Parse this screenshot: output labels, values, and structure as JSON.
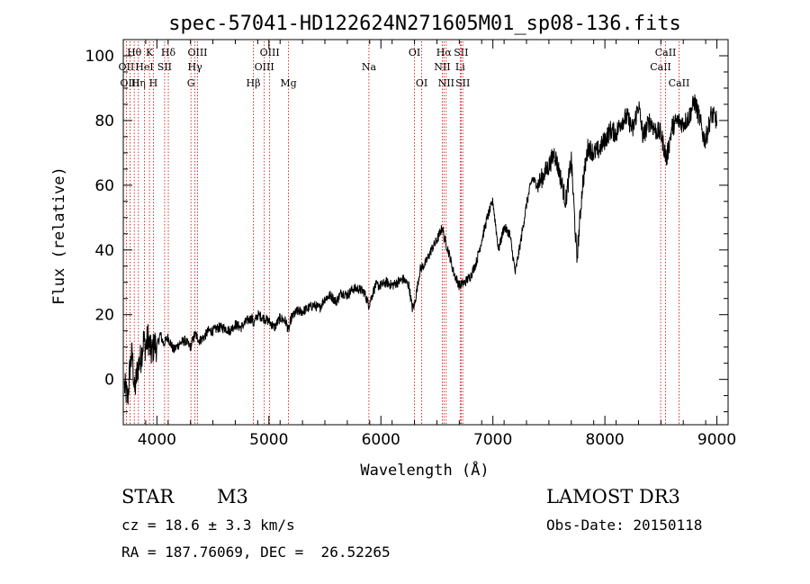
{
  "chart_data": {
    "type": "line",
    "title": "spec-57041-HD122624N271605M01_sp08-136.fits",
    "xlabel": "Wavelength (Å)",
    "ylabel": "Flux (relative)",
    "xlim": [
      3700,
      9100
    ],
    "ylim": [
      -14,
      105
    ],
    "xticks": [
      4000,
      5000,
      6000,
      7000,
      8000,
      9000
    ],
    "yticks": [
      0,
      20,
      40,
      60,
      80,
      100
    ],
    "spectrum_anchor_points": {
      "x": [
        3710,
        3740,
        3760,
        3780,
        3800,
        3830,
        3860,
        3880,
        3900,
        3920,
        3950,
        3980,
        4000,
        4030,
        4060,
        4100,
        4150,
        4200,
        4250,
        4300,
        4340,
        4380,
        4420,
        4460,
        4500,
        4550,
        4600,
        4650,
        4700,
        4750,
        4800,
        4850,
        4861,
        4900,
        4950,
        5000,
        5050,
        5100,
        5150,
        5175,
        5200,
        5250,
        5300,
        5350,
        5400,
        5450,
        5500,
        5550,
        5600,
        5650,
        5700,
        5750,
        5800,
        5850,
        5893,
        5950,
        6000,
        6050,
        6100,
        6150,
        6200,
        6250,
        6280,
        6300,
        6350,
        6400,
        6450,
        6500,
        6550,
        6563,
        6600,
        6650,
        6700,
        6750,
        6800,
        6850,
        6900,
        6950,
        7000,
        7050,
        7100,
        7150,
        7200,
        7250,
        7300,
        7350,
        7400,
        7450,
        7500,
        7550,
        7600,
        7650,
        7700,
        7750,
        7800,
        7850,
        7900,
        7950,
        8000,
        8050,
        8100,
        8150,
        8200,
        8250,
        8300,
        8340,
        8400,
        8450,
        8500,
        8550,
        8600,
        8650,
        8700,
        8750,
        8800,
        8850,
        8880,
        8900,
        8950,
        9000
      ],
      "y": [
        -2,
        -6,
        4,
        8,
        -4,
        4,
        7,
        12,
        10,
        13,
        8,
        11,
        10,
        14,
        11,
        13,
        9,
        11,
        12,
        10,
        14,
        12,
        13,
        15,
        15,
        16,
        16,
        15,
        17,
        16,
        18,
        19,
        17,
        20,
        19,
        18,
        16,
        19,
        18,
        15,
        19,
        21,
        21,
        22,
        23,
        22,
        25,
        26,
        24,
        27,
        26,
        28,
        28,
        27,
        23,
        29,
        29,
        30,
        29,
        30,
        31,
        29,
        22,
        23,
        34,
        36,
        40,
        43,
        47,
        44,
        40,
        33,
        29,
        30,
        32,
        36,
        43,
        50,
        55,
        40,
        47,
        45,
        33,
        43,
        54,
        62,
        60,
        63,
        66,
        70,
        63,
        55,
        68,
        37,
        60,
        72,
        70,
        71,
        74,
        77,
        76,
        80,
        81,
        77,
        85,
        75,
        80,
        77,
        76,
        68,
        78,
        80,
        79,
        81,
        86,
        80,
        75,
        74,
        82,
        80
      ]
    },
    "spectral_lines": [
      {
        "name": "OII",
        "wavelength": 3727,
        "row": 2
      },
      {
        "name": "OIII",
        "wavelength": 3760,
        "row": 3
      },
      {
        "name": "Hθ",
        "wavelength": 3798,
        "row": 1
      },
      {
        "name": "Hη",
        "wavelength": 3835,
        "row": 3
      },
      {
        "name": "HeI",
        "wavelength": 3889,
        "row": 2
      },
      {
        "name": "K",
        "wavelength": 3934,
        "row": 1
      },
      {
        "name": "H",
        "wavelength": 3969,
        "row": 3
      },
      {
        "name": "SII",
        "wavelength": 4069,
        "row": 2
      },
      {
        "name": "Hδ",
        "wavelength": 4102,
        "row": 1
      },
      {
        "name": "G",
        "wavelength": 4304,
        "row": 3
      },
      {
        "name": "Hγ",
        "wavelength": 4340,
        "row": 2
      },
      {
        "name": "OIII",
        "wavelength": 4363,
        "row": 1
      },
      {
        "name": "Hβ",
        "wavelength": 4861,
        "row": 3
      },
      {
        "name": "OIII",
        "wavelength": 4959,
        "row": 2
      },
      {
        "name": "OIII",
        "wavelength": 5007,
        "row": 1
      },
      {
        "name": "Mg",
        "wavelength": 5175,
        "row": 3
      },
      {
        "name": "Na",
        "wavelength": 5893,
        "row": 2
      },
      {
        "name": "OI",
        "wavelength": 6300,
        "row": 1
      },
      {
        "name": "OI",
        "wavelength": 6364,
        "row": 3
      },
      {
        "name": "NII",
        "wavelength": 6548,
        "row": 2
      },
      {
        "name": "Hα",
        "wavelength": 6563,
        "row": 1
      },
      {
        "name": "NII",
        "wavelength": 6583,
        "row": 3
      },
      {
        "name": "Li",
        "wavelength": 6708,
        "row": 2
      },
      {
        "name": "SII",
        "wavelength": 6716,
        "row": 1
      },
      {
        "name": "SII",
        "wavelength": 6731,
        "row": 3
      },
      {
        "name": "CaII",
        "wavelength": 8498,
        "row": 2
      },
      {
        "name": "CaII",
        "wavelength": 8542,
        "row": 1
      },
      {
        "name": "CaII",
        "wavelength": 8662,
        "row": 3
      }
    ],
    "line_color": "#cc0000",
    "spectrum_color": "#000000"
  },
  "info": {
    "object_class": "STAR",
    "subclass": "M3",
    "survey": "LAMOST DR3",
    "redshift": "cz = 18.6 ± 3.3 km/s",
    "obs_date": "Obs-Date: 20150118",
    "coords": "RA = 187.76069, DEC =  26.52265"
  }
}
